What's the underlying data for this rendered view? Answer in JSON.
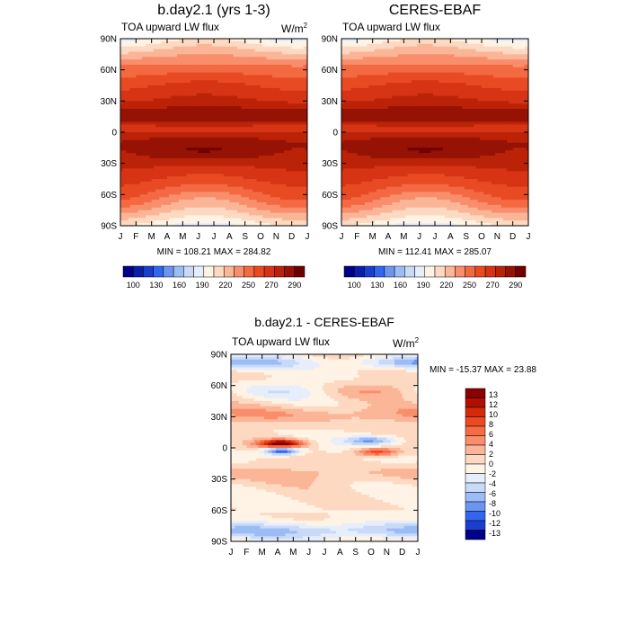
{
  "chart_data": [
    {
      "type": "heatmap",
      "title": "b.day2.1 (yrs 1-3)",
      "subtitle_left": "TOA upward LW flux",
      "units": "W/m",
      "units_sup": "2",
      "ylabels": [
        "90N",
        "60N",
        "30N",
        "0",
        "30S",
        "60S",
        "90S"
      ],
      "xlabels": [
        "J",
        "F",
        "M",
        "A",
        "M",
        "J",
        "J",
        "A",
        "S",
        "O",
        "N",
        "D",
        "J"
      ],
      "minmax": "MIN = 108.21  MAX = 284.82",
      "field": "lw_full",
      "colorbar": {
        "labels": [
          "100",
          "130",
          "160",
          "190",
          "220",
          "250",
          "270",
          "290"
        ],
        "colors": [
          "#00008b",
          "#0a1fa8",
          "#1a3fd0",
          "#3366f0",
          "#6a96f2",
          "#9cbcf5",
          "#c8daf8",
          "#e6eefb",
          "#fff3e6",
          "#fdd9c2",
          "#fbb597",
          "#f98e6c",
          "#f36a42",
          "#e84a24",
          "#d63414",
          "#bb2308",
          "#961204",
          "#700000"
        ]
      }
    },
    {
      "type": "heatmap",
      "title": "CERES-EBAF",
      "subtitle_left": "TOA upward LW flux",
      "ylabels": [
        "90N",
        "60N",
        "30N",
        "0",
        "30S",
        "60S",
        "90S"
      ],
      "xlabels": [
        "J",
        "F",
        "M",
        "A",
        "M",
        "J",
        "J",
        "A",
        "S",
        "O",
        "N",
        "D",
        "J"
      ],
      "minmax": "MIN = 112.41  MAX = 285.07",
      "field": "lw_full",
      "colorbar": {
        "labels": [
          "100",
          "130",
          "160",
          "190",
          "220",
          "250",
          "270",
          "290"
        ],
        "colors": [
          "#00008b",
          "#0a1fa8",
          "#1a3fd0",
          "#3366f0",
          "#6a96f2",
          "#9cbcf5",
          "#c8daf8",
          "#e6eefb",
          "#fff3e6",
          "#fdd9c2",
          "#fbb597",
          "#f98e6c",
          "#f36a42",
          "#e84a24",
          "#d63414",
          "#bb2308",
          "#961204",
          "#700000"
        ]
      }
    },
    {
      "type": "heatmap",
      "title": "b.day2.1 - CERES-EBAF",
      "subtitle_left": "TOA upward LW flux",
      "units": "W/m",
      "units_sup": "2",
      "ylabels": [
        "90N",
        "60N",
        "30N",
        "0",
        "30S",
        "60S",
        "90S"
      ],
      "xlabels": [
        "J",
        "F",
        "M",
        "A",
        "M",
        "J",
        "J",
        "A",
        "S",
        "O",
        "N",
        "D",
        "J"
      ],
      "minmax": "MIN = -15.37  MAX =  23.88",
      "field": "lw_diff",
      "colorbar": {
        "labels": [
          "13",
          "12",
          "10",
          "8",
          "6",
          "4",
          "2",
          "0",
          "-2",
          "-4",
          "-6",
          "-8",
          "-10",
          "-12",
          "-13"
        ],
        "colors": [
          "#8b0000",
          "#b01000",
          "#d42a0a",
          "#ee4a20",
          "#f56c44",
          "#f98e6c",
          "#fbb597",
          "#fdd9c2",
          "#fff3e6",
          "#e6eefb",
          "#c8daf8",
          "#9cbcf5",
          "#6a96f2",
          "#3366f0",
          "#1a3fd0",
          "#00008b"
        ]
      }
    }
  ]
}
